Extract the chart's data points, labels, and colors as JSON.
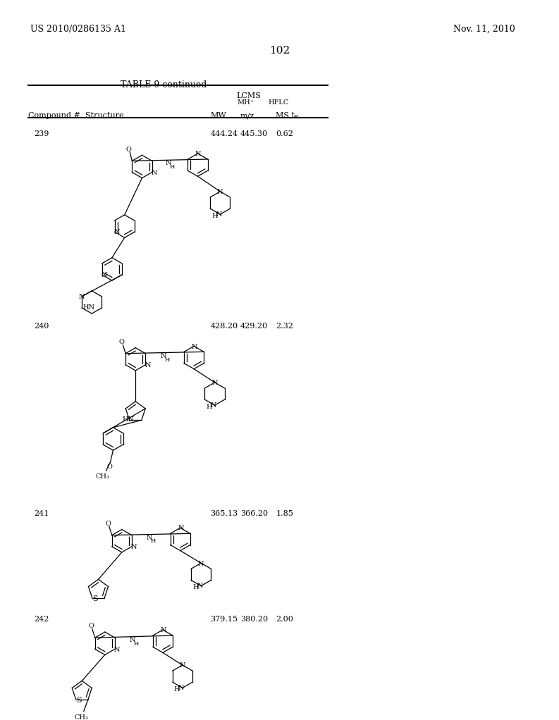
{
  "page_number": "102",
  "patent_number": "US 2010/0286135 A1",
  "patent_date": "Nov. 11, 2010",
  "table_title": "TABLE 9-continued",
  "compounds": [
    {
      "num": "239",
      "mw": "444.24",
      "mhplus": "445.30",
      "hplc": "0.62"
    },
    {
      "num": "240",
      "mw": "428.20",
      "mhplus": "429.20",
      "hplc": "2.32"
    },
    {
      "num": "241",
      "mw": "365.13",
      "mhplus": "366.20",
      "hplc": "1.85"
    },
    {
      "num": "242",
      "mw": "379.15",
      "mhplus": "380.20",
      "hplc": "2.00"
    }
  ],
  "bg_color": "#ffffff",
  "text_color": "#000000"
}
